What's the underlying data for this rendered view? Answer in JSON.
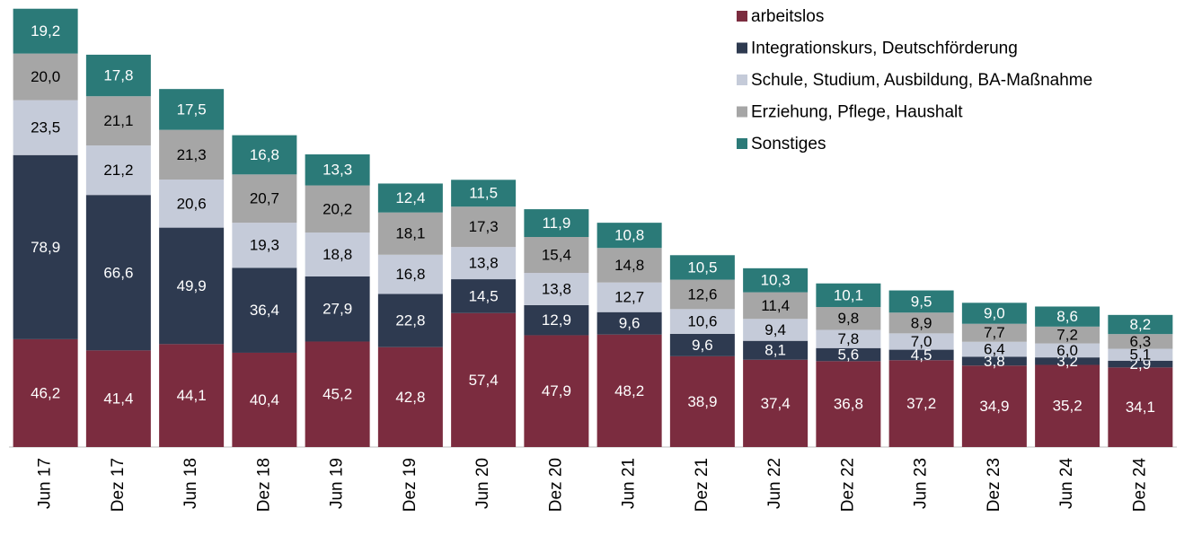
{
  "chart_data": {
    "type": "stacked-bar",
    "categories": [
      "Jun 17",
      "Dez 17",
      "Jun 18",
      "Dez 18",
      "Jun 19",
      "Dez 19",
      "Jun 20",
      "Dez 20",
      "Jun 21",
      "Dez 21",
      "Jun 22",
      "Dez 22",
      "Jun 23",
      "Dez 23",
      "Jun 24",
      "Dez 24"
    ],
    "series": [
      {
        "name": "arbeitslos",
        "color": "#7b2c3f",
        "label_color": "#ffffff",
        "values": [
          46.2,
          41.4,
          44.1,
          40.4,
          45.2,
          42.8,
          57.4,
          47.9,
          48.2,
          38.9,
          37.4,
          36.8,
          37.2,
          34.9,
          35.2,
          34.1
        ],
        "value_labels": [
          "46,2",
          "41,4",
          "44,1",
          "40,4",
          "45,2",
          "42,8",
          "57,4",
          "47,9",
          "48,2",
          "38,9",
          "37,4",
          "36,8",
          "37,2",
          "34,9",
          "35,2",
          "34,1"
        ]
      },
      {
        "name": "Integrationskurs, Deutschförderung",
        "color": "#2e3a50",
        "label_color": "#ffffff",
        "values": [
          78.9,
          66.6,
          49.9,
          36.4,
          27.9,
          22.8,
          14.5,
          12.9,
          9.6,
          9.6,
          8.1,
          5.6,
          4.5,
          3.8,
          3.2,
          2.9
        ],
        "value_labels": [
          "78,9",
          "66,6",
          "49,9",
          "36,4",
          "27,9",
          "22,8",
          "14,5",
          "12,9",
          "9,6",
          "9,6",
          "8,1",
          "5,6",
          "4,5",
          "3,8",
          "3,2",
          "2,9"
        ]
      },
      {
        "name": "Schule, Studium, Ausbildung, BA-Maßnahme",
        "color": "#c5cbd9",
        "label_color": "#000000",
        "values": [
          23.5,
          21.2,
          20.6,
          19.3,
          18.8,
          16.8,
          13.8,
          13.8,
          12.7,
          10.6,
          9.4,
          7.8,
          7.0,
          6.4,
          6.0,
          5.1
        ],
        "value_labels": [
          "23,5",
          "21,2",
          "20,6",
          "19,3",
          "18,8",
          "16,8",
          "13,8",
          "13,8",
          "12,7",
          "10,6",
          "9,4",
          "7,8",
          "7,0",
          "6,4",
          "6,0",
          "5,1"
        ]
      },
      {
        "name": "Erziehung, Pflege, Haushalt",
        "color": "#a6a6a6",
        "label_color": "#000000",
        "values": [
          20.0,
          21.1,
          21.3,
          20.7,
          20.2,
          18.1,
          17.3,
          15.4,
          14.8,
          12.6,
          11.4,
          9.8,
          8.9,
          7.7,
          7.2,
          6.3
        ],
        "value_labels": [
          "20,0",
          "21,1",
          "21,3",
          "20,7",
          "20,2",
          "18,1",
          "17,3",
          "15,4",
          "14,8",
          "12,6",
          "11,4",
          "9,8",
          "8,9",
          "7,7",
          "7,2",
          "6,3"
        ]
      },
      {
        "name": "Sonstiges",
        "color": "#2b7a78",
        "label_color": "#ffffff",
        "values": [
          19.2,
          17.8,
          17.5,
          16.8,
          13.3,
          12.4,
          11.5,
          11.9,
          10.8,
          10.5,
          10.3,
          10.1,
          9.5,
          9.0,
          8.6,
          8.2
        ],
        "value_labels": [
          "19,2",
          "17,8",
          "17,5",
          "16,8",
          "13,3",
          "12,4",
          "11,5",
          "11,9",
          "10,8",
          "10,5",
          "10,3",
          "10,1",
          "9,5",
          "9,0",
          "8,6",
          "8,2"
        ]
      }
    ]
  }
}
